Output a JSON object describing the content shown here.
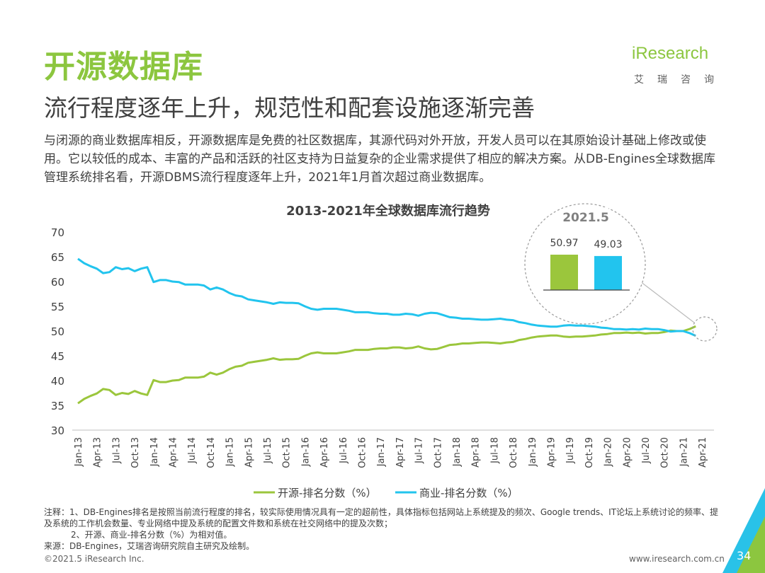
{
  "header": {
    "title": "开源数据库",
    "subtitle": "流行程度逐年上升，规范性和配套设施逐渐完善",
    "intro": "与闭源的商业数据库相反，开源数据库是免费的社区数据库，其源代码对外开放，开发人员可以在其原始设计基础上修改或使用。它以较低的成本、丰富的产品和活跃的社区支持为日益复杂的企业需求提供了相应的解决方案。从DB-Engines全球数据库管理系统排名看，开源DBMS流行程度逐年上升，2021年1月首次超过商业数据库。"
  },
  "logo": {
    "wordmark": "iResearch",
    "cn": "艾瑞咨询"
  },
  "notes": {
    "line1": "注释：1、DB-Engines排名是按照当前流行程度的排名，较实际使用情况具有一定的超前性，具体指标包括网站上系统提及的频次、Google trends、IT论坛上系统讨论的频率、提及系统的工作机会数量、专业网络中提及系统的配置文件数和系统在社交网络中的提及次数；",
    "line2": "2、开源、商业-排名分数（%）为相对值。",
    "source": "来源：DB-Engines，艾瑞咨询研究院自主研究及绘制。"
  },
  "footer": {
    "copyright": "©2021.5 iResearch Inc.",
    "url": "www.iresearch.com.cn",
    "page": "34"
  },
  "colors": {
    "open": "#9bc63c",
    "commercial": "#22c4ee",
    "brand": "#8cc63f"
  },
  "chart_data": {
    "type": "line",
    "title": "2013-2021年全球数据库流行趋势",
    "ylim": [
      30,
      70
    ],
    "yticks": [
      30,
      35,
      40,
      45,
      50,
      55,
      60,
      65,
      70
    ],
    "xtick_labels": [
      "Jan-13",
      "Apr-13",
      "Jul-13",
      "Oct-13",
      "Jan-14",
      "Apr-14",
      "Jul-14",
      "Oct-14",
      "Jan-15",
      "Apr-15",
      "Jul-15",
      "Oct-15",
      "Jan-16",
      "Apr-16",
      "Jul-16",
      "Oct-16",
      "Jan-17",
      "Apr-17",
      "Jul-17",
      "Oct-17",
      "Jan-18",
      "Apr-18",
      "Jul-18",
      "Oct-18",
      "Jan-19",
      "Apr-19",
      "Jul-19",
      "Oct-19",
      "Jan-20",
      "Apr-20",
      "Jul-20",
      "Oct-20",
      "Jan-21",
      "Apr-21"
    ],
    "x_months": [
      "Jan-13",
      "Feb-13",
      "Mar-13",
      "Apr-13",
      "May-13",
      "Jun-13",
      "Jul-13",
      "Aug-13",
      "Sep-13",
      "Oct-13",
      "Nov-13",
      "Dec-13",
      "Jan-14",
      "Feb-14",
      "Mar-14",
      "Apr-14",
      "May-14",
      "Jun-14",
      "Jul-14",
      "Aug-14",
      "Sep-14",
      "Oct-14",
      "Nov-14",
      "Dec-14",
      "Jan-15",
      "Feb-15",
      "Mar-15",
      "Apr-15",
      "May-15",
      "Jun-15",
      "Jul-15",
      "Aug-15",
      "Sep-15",
      "Oct-15",
      "Nov-15",
      "Dec-15",
      "Jan-16",
      "Feb-16",
      "Mar-16",
      "Apr-16",
      "May-16",
      "Jun-16",
      "Jul-16",
      "Aug-16",
      "Sep-16",
      "Oct-16",
      "Nov-16",
      "Dec-16",
      "Jan-17",
      "Feb-17",
      "Mar-17",
      "Apr-17",
      "May-17",
      "Jun-17",
      "Jul-17",
      "Aug-17",
      "Sep-17",
      "Oct-17",
      "Nov-17",
      "Dec-17",
      "Jan-18",
      "Feb-18",
      "Mar-18",
      "Apr-18",
      "May-18",
      "Jun-18",
      "Jul-18",
      "Aug-18",
      "Sep-18",
      "Oct-18",
      "Nov-18",
      "Dec-18",
      "Jan-19",
      "Feb-19",
      "Mar-19",
      "Apr-19",
      "May-19",
      "Jun-19",
      "Jul-19",
      "Aug-19",
      "Sep-19",
      "Oct-19",
      "Nov-19",
      "Dec-19",
      "Jan-20",
      "Feb-20",
      "Mar-20",
      "Apr-20",
      "May-20",
      "Jun-20",
      "Jul-20",
      "Aug-20",
      "Sep-20",
      "Oct-20",
      "Nov-20",
      "Dec-20",
      "Jan-21",
      "Feb-21",
      "Mar-21",
      "Apr-21",
      "May-21"
    ],
    "series": [
      {
        "name": "开源-排名分数（%）",
        "color": "#9bc63c",
        "values": [
          35.4,
          36.3,
          36.9,
          37.4,
          38.3,
          38.1,
          37.1,
          37.5,
          37.3,
          37.9,
          37.4,
          37.1,
          40.1,
          39.7,
          39.7,
          40.0,
          40.1,
          40.6,
          40.6,
          40.6,
          40.8,
          41.6,
          41.2,
          41.6,
          42.3,
          42.8,
          43.0,
          43.6,
          43.8,
          44.0,
          44.2,
          44.5,
          44.2,
          44.3,
          44.3,
          44.4,
          45.0,
          45.5,
          45.7,
          45.5,
          45.5,
          45.5,
          45.7,
          45.9,
          46.2,
          46.2,
          46.2,
          46.4,
          46.5,
          46.5,
          46.7,
          46.7,
          46.5,
          46.6,
          46.9,
          46.5,
          46.3,
          46.4,
          46.8,
          47.2,
          47.3,
          47.5,
          47.5,
          47.6,
          47.7,
          47.7,
          47.6,
          47.5,
          47.7,
          47.8,
          48.2,
          48.4,
          48.7,
          48.9,
          49.0,
          49.1,
          49.1,
          48.9,
          48.8,
          48.9,
          48.9,
          49.0,
          49.1,
          49.3,
          49.4,
          49.6,
          49.6,
          49.7,
          49.6,
          49.7,
          49.5,
          49.6,
          49.6,
          49.8,
          50.1,
          50.0,
          50.0,
          50.4,
          50.97
        ]
      },
      {
        "name": "商业-排名分数（%）",
        "color": "#22c4ee",
        "values": [
          64.6,
          63.7,
          63.1,
          62.6,
          61.7,
          61.9,
          62.9,
          62.5,
          62.7,
          62.1,
          62.6,
          62.9,
          59.9,
          60.3,
          60.3,
          60.0,
          59.9,
          59.4,
          59.4,
          59.4,
          59.2,
          58.4,
          58.8,
          58.4,
          57.7,
          57.2,
          57.0,
          56.4,
          56.2,
          56.0,
          55.8,
          55.5,
          55.8,
          55.7,
          55.7,
          55.6,
          55.0,
          54.5,
          54.3,
          54.5,
          54.5,
          54.5,
          54.3,
          54.1,
          53.8,
          53.8,
          53.8,
          53.6,
          53.5,
          53.5,
          53.3,
          53.3,
          53.5,
          53.4,
          53.1,
          53.5,
          53.7,
          53.6,
          53.2,
          52.8,
          52.7,
          52.5,
          52.5,
          52.4,
          52.3,
          52.3,
          52.4,
          52.5,
          52.3,
          52.2,
          51.8,
          51.6,
          51.3,
          51.1,
          51.0,
          50.9,
          50.9,
          51.1,
          51.2,
          51.1,
          51.1,
          51.0,
          50.9,
          50.7,
          50.6,
          50.4,
          50.4,
          50.3,
          50.4,
          50.3,
          50.5,
          50.4,
          50.4,
          50.2,
          49.9,
          50.0,
          50.0,
          49.6,
          49.03
        ]
      }
    ],
    "callout": {
      "label": "2021.5",
      "bars": [
        {
          "label": "50.97",
          "value": 50.97,
          "color": "#9bc63c"
        },
        {
          "label": "49.03",
          "value": 49.03,
          "color": "#22c4ee"
        }
      ]
    },
    "legend_position": "bottom",
    "grid": false
  }
}
